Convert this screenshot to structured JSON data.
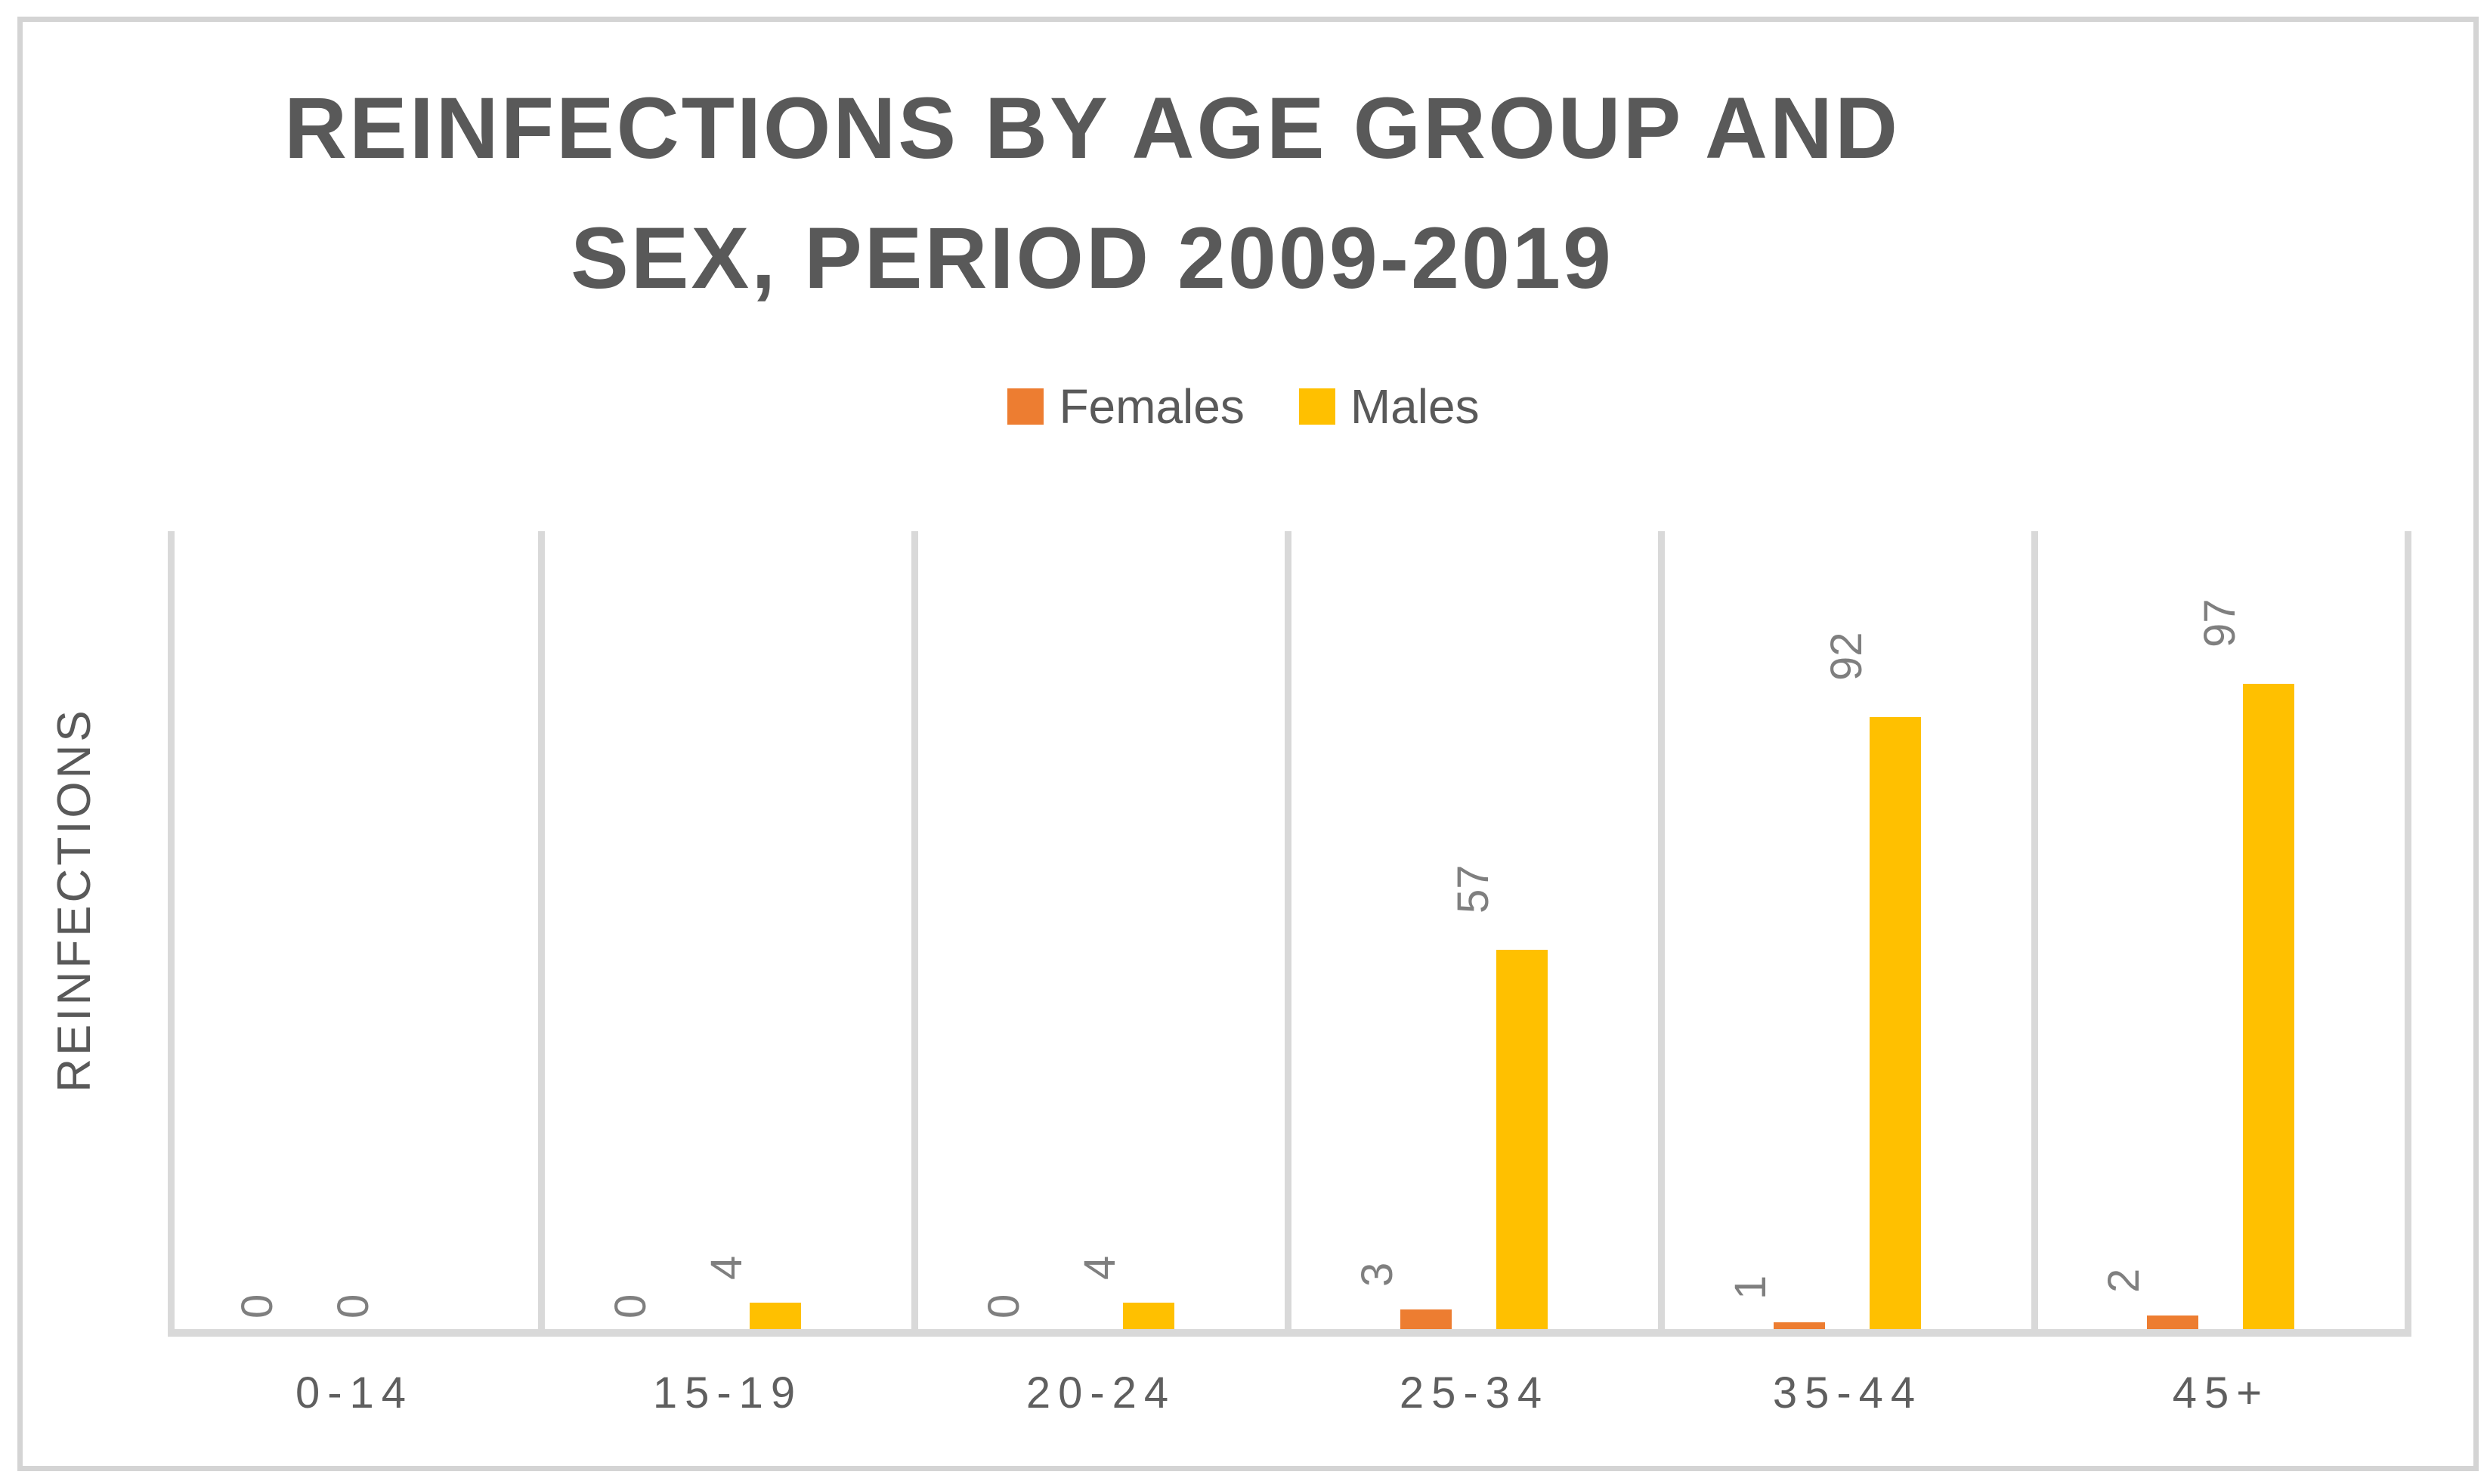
{
  "title": {
    "line1": "REINFECTIONS BY AGE GROUP AND",
    "line2": "SEX, PERIOD 2009-2019"
  },
  "legend": {
    "items": [
      {
        "label": "Females",
        "color": "#ED7D31"
      },
      {
        "label": "Males",
        "color": "#FFC000"
      }
    ]
  },
  "y_axis": {
    "title": "REINFECTIONS"
  },
  "chart_data": {
    "type": "bar",
    "title": "REINFECTIONS BY AGE GROUP AND SEX, PERIOD 2009-2019",
    "categories": [
      "0-14",
      "15-19",
      "20-24",
      "25-34",
      "35-44",
      "45+"
    ],
    "series": [
      {
        "name": "Females",
        "color": "#ED7D31",
        "values": [
          0,
          0,
          0,
          3,
          1,
          2
        ]
      },
      {
        "name": "Males",
        "color": "#FFC000",
        "values": [
          0,
          4,
          4,
          57,
          92,
          97
        ]
      }
    ],
    "xlabel": "",
    "ylabel": "REINFECTIONS",
    "ylim": [
      0,
      120
    ],
    "y_axis_ticks_visible": false,
    "grid": "vertical-category-gridlines",
    "legend_position": "top-center",
    "data_labels": "values shown rotated 90deg above each bar"
  },
  "colors": {
    "title_text": "#595959",
    "tick_text": "#5f5f5f",
    "data_label_text": "#7f7f7f",
    "gridline": "#d9d9d9",
    "axis_line": "#d9d9d9",
    "chart_border": "#d4d4d4",
    "background": "#ffffff"
  }
}
